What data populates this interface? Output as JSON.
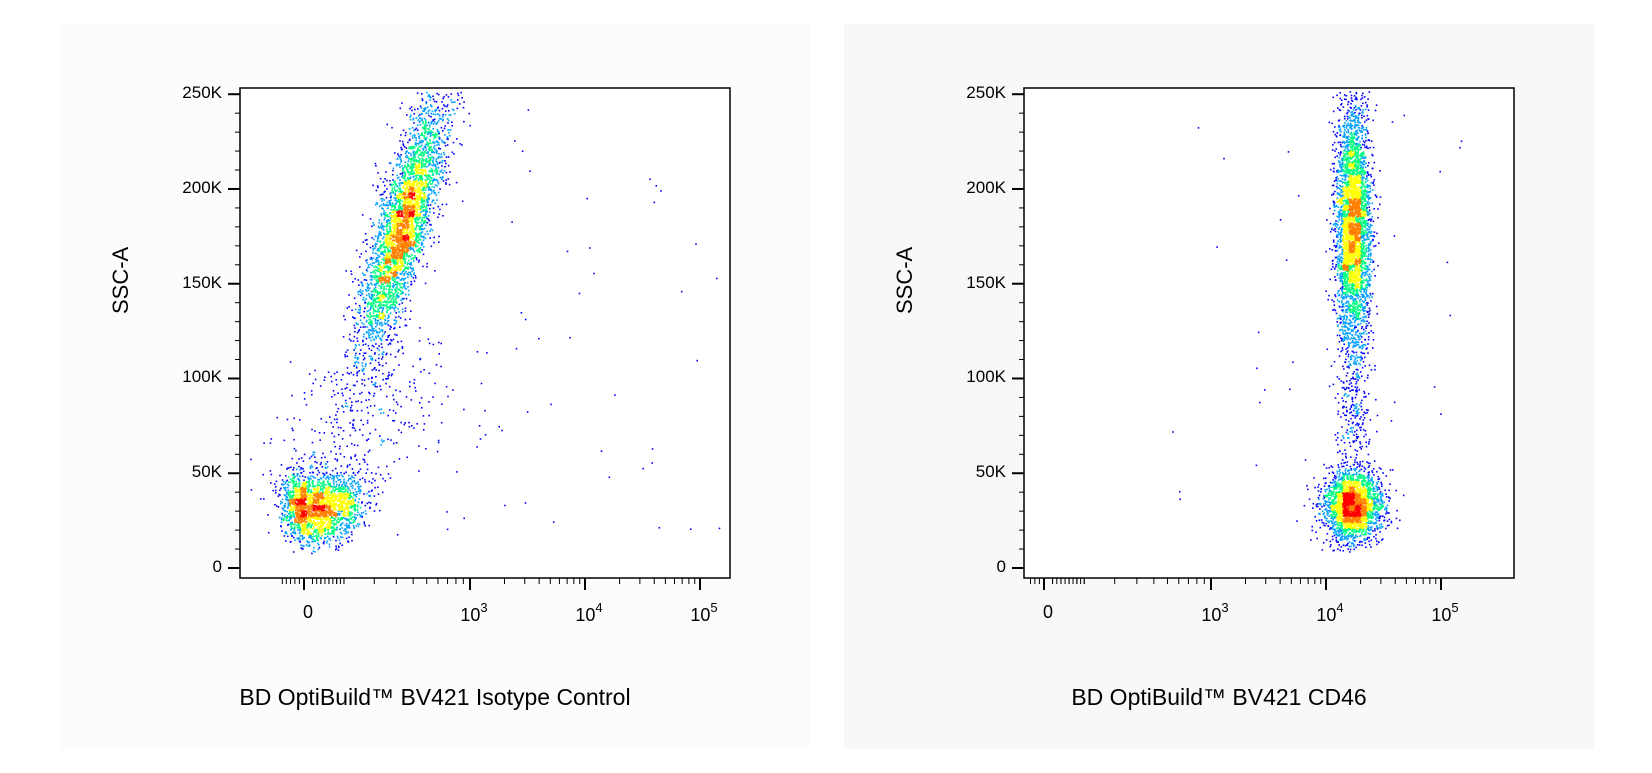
{
  "chart_data": [
    {
      "type": "scatter",
      "title": "",
      "xlabel": "BD OptiBuild™ BV421 Isotype Control",
      "ylabel": "SSC-A",
      "x_scale": "biexponential",
      "xlim": [
        -300,
        150000
      ],
      "ylim": [
        0,
        262144
      ],
      "x_ticks": [
        {
          "value": 0,
          "label": "0"
        },
        {
          "value": 1000,
          "base": "10",
          "exp": "3"
        },
        {
          "value": 10000,
          "base": "10",
          "exp": "4"
        },
        {
          "value": 100000,
          "base": "10",
          "exp": "5"
        }
      ],
      "y_ticks": [
        {
          "value": 0,
          "label": "0"
        },
        {
          "value": 50000,
          "label": "50K"
        },
        {
          "value": 100000,
          "label": "100K"
        },
        {
          "value": 150000,
          "label": "150K"
        },
        {
          "value": 200000,
          "label": "200K"
        },
        {
          "value": 250000,
          "label": "250K"
        }
      ],
      "populations": [
        {
          "x_center": 30,
          "y_center": 33000,
          "x_spread": 60,
          "y_spread": 9000,
          "n": 2200
        },
        {
          "x_center": 330,
          "y_center": 180000,
          "x_spread": 0.09,
          "y_spread": 33000,
          "n": 3800,
          "slope": 1
        },
        {
          "x_center": 150,
          "y_center": 75000,
          "x_spread": 0.12,
          "y_spread": 25000,
          "n": 350
        }
      ],
      "density_colors": [
        "#0000ff",
        "#00a0ff",
        "#00ff80",
        "#ffff00",
        "#ff8000",
        "#ff0000"
      ]
    },
    {
      "type": "scatter",
      "title": "",
      "xlabel": "BD OptiBuild™ BV421 CD46",
      "ylabel": "SSC-A",
      "x_scale": "biexponential",
      "xlim": [
        -300,
        200000
      ],
      "ylim": [
        0,
        262144
      ],
      "x_ticks": [
        {
          "value": 0,
          "label": "0"
        },
        {
          "value": 1000,
          "base": "10",
          "exp": "3"
        },
        {
          "value": 10000,
          "base": "10",
          "exp": "4"
        },
        {
          "value": 100000,
          "base": "10",
          "exp": "5"
        }
      ],
      "y_ticks": [
        {
          "value": 0,
          "label": "0"
        },
        {
          "value": 50000,
          "label": "50K"
        },
        {
          "value": 100000,
          "label": "100K"
        },
        {
          "value": 150000,
          "label": "150K"
        },
        {
          "value": 200000,
          "label": "200K"
        },
        {
          "value": 250000,
          "label": "250K"
        }
      ],
      "populations": [
        {
          "x_center": 17000,
          "y_center": 33000,
          "x_spread": 0.13,
          "y_spread": 9000,
          "n": 2400
        },
        {
          "x_center": 17000,
          "y_center": 180000,
          "x_spread": 0.08,
          "y_spread": 33000,
          "n": 3800
        },
        {
          "x_center": 17000,
          "y_center": 80000,
          "x_spread": 0.08,
          "y_spread": 22000,
          "n": 250
        }
      ],
      "density_colors": [
        "#0000ff",
        "#00a0ff",
        "#00ff80",
        "#ffff00",
        "#ff8000",
        "#ff0000"
      ]
    }
  ]
}
